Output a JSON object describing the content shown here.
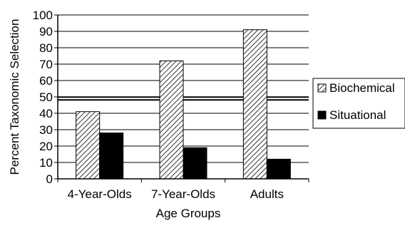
{
  "chart_data": {
    "type": "bar",
    "title": "",
    "xlabel": "Age Groups",
    "ylabel": "Percent Taxonomic Selection",
    "ylim": [
      0,
      100
    ],
    "yticks": [
      0,
      10,
      20,
      30,
      40,
      50,
      60,
      70,
      80,
      90,
      100
    ],
    "categories": [
      "4-Year-Olds",
      "7-Year-Olds",
      "Adults"
    ],
    "series": [
      {
        "name": "Biochemical",
        "values": [
          41,
          72,
          91
        ],
        "pattern": "diagonal-hatch",
        "color": "#000000"
      },
      {
        "name": "Situational",
        "values": [
          28,
          19,
          12
        ],
        "pattern": "solid",
        "color": "#000000"
      }
    ],
    "reference_line": {
      "value": 49,
      "style": "double"
    },
    "grid": "horizontal",
    "legend_position": "right"
  }
}
